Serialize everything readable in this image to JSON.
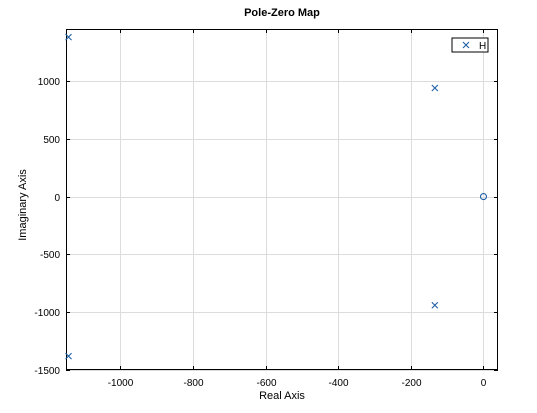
{
  "chart_data": {
    "type": "scatter",
    "title": "Pole-Zero Map",
    "xlabel": "Real Axis",
    "ylabel": "Imaginary Axis",
    "xlim": [
      -1150,
      40
    ],
    "ylim": [
      -1500,
      1450
    ],
    "x_ticks": [
      -1000,
      -800,
      -600,
      -400,
      -200,
      0
    ],
    "x_tick_labels": [
      "-1000",
      "-800",
      "-600",
      "-400",
      "-200",
      "0"
    ],
    "y_ticks": [
      -1500,
      -1000,
      -500,
      0,
      500,
      1000
    ],
    "y_tick_labels": [
      "-1500",
      "-1000",
      "-500",
      "0",
      "500",
      "1000"
    ],
    "grid": true,
    "legend": {
      "position": "top-right",
      "entries": [
        "H"
      ]
    },
    "series": [
      {
        "name": "H",
        "color": "#1f5fa6",
        "poles": [
          {
            "x": -1143,
            "y": 1380
          },
          {
            "x": -1143,
            "y": -1380
          },
          {
            "x": -134,
            "y": 940
          },
          {
            "x": -134,
            "y": -940
          }
        ],
        "zeros": [
          {
            "x": 0,
            "y": 0
          }
        ]
      }
    ]
  }
}
